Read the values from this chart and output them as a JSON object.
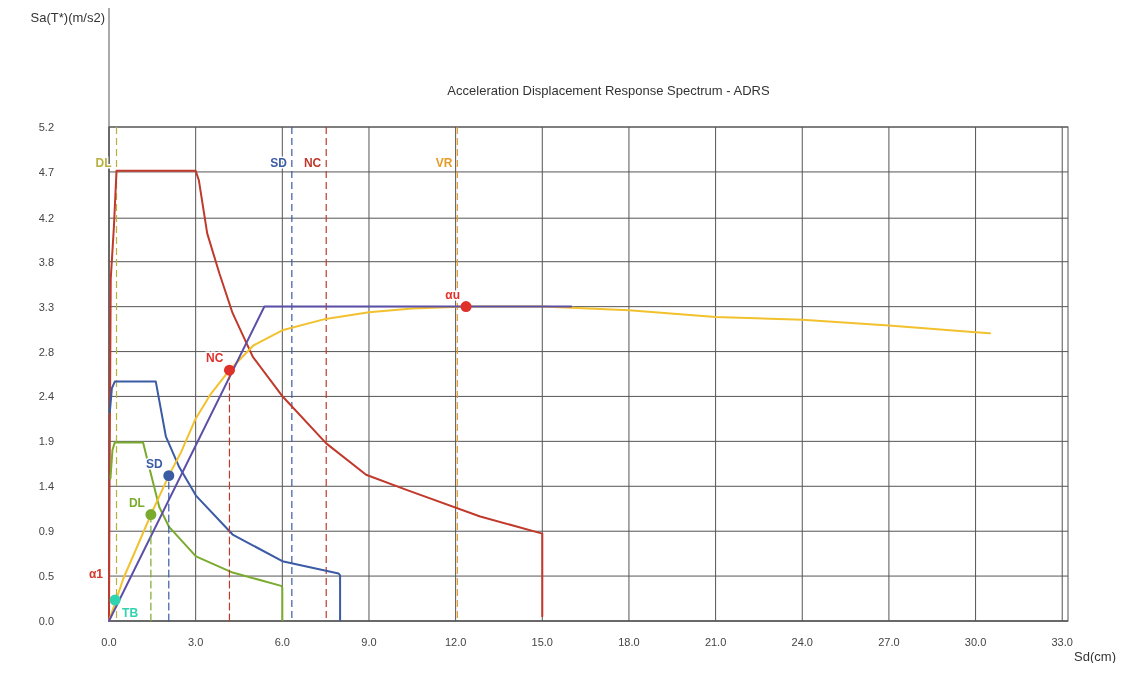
{
  "chart_data": {
    "type": "line",
    "title": "Acceleration Displacement Response Spectrum - ADRS",
    "xlabel": "Sd(cm)",
    "xlim": [
      0,
      33.2
    ],
    "xticks": [
      {
        "value": 0,
        "label": "0.0"
      },
      {
        "value": 3,
        "label": "3.0"
      },
      {
        "value": 6,
        "label": "6.0"
      },
      {
        "value": 9,
        "label": "9.0"
      },
      {
        "value": 12,
        "label": "12.0"
      },
      {
        "value": 15,
        "label": "15.0"
      },
      {
        "value": 18,
        "label": "18.0"
      },
      {
        "value": 21,
        "label": "21.0"
      },
      {
        "value": 24,
        "label": "24.0"
      },
      {
        "value": 27,
        "label": "27.0"
      },
      {
        "value": 30,
        "label": "30.0"
      },
      {
        "value": 33,
        "label": "33.0"
      }
    ],
    "ylim": [
      0,
      5.2
    ],
    "yticks": [
      {
        "value": 0,
        "label": "0.0"
      },
      {
        "value": 0.473,
        "label": "0.5"
      },
      {
        "value": 0.945,
        "label": "0.9"
      },
      {
        "value": 1.418,
        "label": "1.4"
      },
      {
        "value": 1.891,
        "label": "1.9"
      },
      {
        "value": 2.364,
        "label": "2.4"
      },
      {
        "value": 2.836,
        "label": "2.8"
      },
      {
        "value": 3.309,
        "label": "3.3"
      },
      {
        "value": 3.782,
        "label": "3.8"
      },
      {
        "value": 4.24,
        "label": "4.2"
      },
      {
        "value": 4.727,
        "label": "4.7"
      },
      {
        "value": 5.2,
        "label": "5.2"
      }
    ],
    "grid": true,
    "series": [
      {
        "color": "#c0392b",
        "x": [
          0,
          0.02,
          0.06,
          0.17,
          0.26,
          3.0,
          3.11,
          3.4,
          3.82,
          4.28,
          4.98,
          6.02,
          7.52,
          8.9,
          10.3,
          12.85,
          15,
          15
        ],
        "values": [
          0,
          1.5,
          3.6,
          4.15,
          4.74,
          4.74,
          4.64,
          4.08,
          3.66,
          3.24,
          2.78,
          2.36,
          1.87,
          1.54,
          1.38,
          1.1,
          0.92,
          0.05
        ]
      },
      {
        "color": "#3b5ba5",
        "x": [
          0.03,
          0.1,
          0.2,
          1.62,
          1.97,
          2.43,
          3.01,
          4.28,
          6.0,
          7.95,
          8.0,
          8.0
        ],
        "values": [
          2.2,
          2.45,
          2.52,
          2.52,
          1.94,
          1.62,
          1.32,
          0.91,
          0.63,
          0.5,
          0.48,
          0.01
        ]
      },
      {
        "color": "#7aab2e",
        "x": [
          0.05,
          0.12,
          0.2,
          1.18,
          1.39,
          1.74,
          2.08,
          3.01,
          4.28,
          5.96,
          6.0,
          6.0
        ],
        "values": [
          1.5,
          1.8,
          1.88,
          1.88,
          1.62,
          1.2,
          0.99,
          0.68,
          0.51,
          0.37,
          0.35,
          0.01
        ]
      },
      {
        "color": "#f2c12e",
        "x": [
          0,
          0.5,
          1.0,
          1.45,
          2.07,
          2.5,
          3.0,
          3.5,
          4.17,
          5,
          6,
          7.5,
          9,
          10.5,
          12.36,
          15,
          18,
          21,
          24,
          27,
          30,
          30.5
        ],
        "values": [
          0,
          0.45,
          0.8,
          1.12,
          1.53,
          1.78,
          2.13,
          2.38,
          2.64,
          2.9,
          3.06,
          3.18,
          3.25,
          3.29,
          3.31,
          3.31,
          3.27,
          3.2,
          3.17,
          3.11,
          3.04,
          3.03
        ]
      },
      {
        "color": "#5b4fa8",
        "x": [
          0,
          5.38,
          16
        ],
        "values": [
          0,
          3.31,
          3.31
        ]
      },
      {
        "type": "line",
        "color": "#7aab2e",
        "line_style": "dashed",
        "x": [
          1.45,
          1.45
        ],
        "values": [
          0,
          1.12
        ]
      },
      {
        "type": "line",
        "color": "#3b5ba5",
        "line_style": "dashed",
        "x": [
          2.07,
          2.07
        ],
        "values": [
          0,
          1.53
        ]
      },
      {
        "type": "line",
        "color": "#c0392b",
        "line_style": "dashed",
        "x": [
          4.17,
          4.17
        ],
        "values": [
          0,
          2.64
        ]
      },
      {
        "type": "scatter",
        "name": "TB",
        "marker": "circle",
        "color": "#2fd3b0",
        "x": [
          0.21
        ],
        "values": [
          0.22
        ]
      },
      {
        "type": "scatter",
        "name": "DL",
        "marker": "circle",
        "color": "#7aab2e",
        "x": [
          1.45
        ],
        "values": [
          1.12
        ]
      },
      {
        "type": "scatter",
        "name": "SD",
        "marker": "circle",
        "color": "#3b5ba5",
        "x": [
          2.07
        ],
        "values": [
          1.53
        ]
      },
      {
        "type": "scatter",
        "name": "NC",
        "marker": "circle",
        "color": "#e0302a",
        "x": [
          4.17
        ],
        "values": [
          2.64
        ]
      },
      {
        "type": "scatter",
        "name": "αu",
        "marker": "circle",
        "color": "#e0302a",
        "x": [
          12.36
        ],
        "values": [
          3.31
        ]
      }
    ],
    "ref_lines": [
      {
        "axis": "x",
        "value": 0.26,
        "label": "DL",
        "color": "#b8b040",
        "line_style": "dashed"
      },
      {
        "axis": "x",
        "value": 6.33,
        "label": "SD",
        "color": "#3b5ba5",
        "line_style": "dashed"
      },
      {
        "axis": "x",
        "value": 7.52,
        "label": "NC",
        "color": "#c0392b",
        "line_style": "dashed"
      },
      {
        "axis": "x",
        "value": 12.06,
        "label": "VR",
        "color": "#e69a28",
        "line_style": "dashed"
      }
    ],
    "annotations": [
      "Sa(T*)(m/s2)",
      {
        "text": "α1",
        "x": 0,
        "y": 0.5
      }
    ]
  }
}
